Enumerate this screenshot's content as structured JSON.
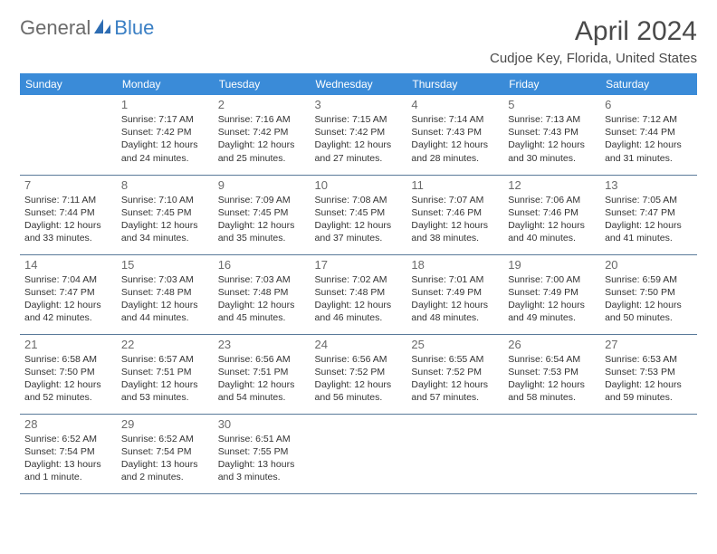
{
  "logo": {
    "text1": "General",
    "text2": "Blue"
  },
  "title": "April 2024",
  "location": "Cudjoe Key, Florida, United States",
  "colors": {
    "header_bg": "#3a8bd8",
    "header_text": "#ffffff",
    "border": "#5a7a9a",
    "logo_gray": "#6b6b6b",
    "logo_blue": "#3a7fc4",
    "text": "#333333",
    "daynum": "#6a6a6a",
    "background": "#ffffff"
  },
  "day_labels": [
    "Sunday",
    "Monday",
    "Tuesday",
    "Wednesday",
    "Thursday",
    "Friday",
    "Saturday"
  ],
  "weeks": [
    [
      null,
      {
        "n": "1",
        "sr": "Sunrise: 7:17 AM",
        "ss": "Sunset: 7:42 PM",
        "d1": "Daylight: 12 hours",
        "d2": "and 24 minutes."
      },
      {
        "n": "2",
        "sr": "Sunrise: 7:16 AM",
        "ss": "Sunset: 7:42 PM",
        "d1": "Daylight: 12 hours",
        "d2": "and 25 minutes."
      },
      {
        "n": "3",
        "sr": "Sunrise: 7:15 AM",
        "ss": "Sunset: 7:42 PM",
        "d1": "Daylight: 12 hours",
        "d2": "and 27 minutes."
      },
      {
        "n": "4",
        "sr": "Sunrise: 7:14 AM",
        "ss": "Sunset: 7:43 PM",
        "d1": "Daylight: 12 hours",
        "d2": "and 28 minutes."
      },
      {
        "n": "5",
        "sr": "Sunrise: 7:13 AM",
        "ss": "Sunset: 7:43 PM",
        "d1": "Daylight: 12 hours",
        "d2": "and 30 minutes."
      },
      {
        "n": "6",
        "sr": "Sunrise: 7:12 AM",
        "ss": "Sunset: 7:44 PM",
        "d1": "Daylight: 12 hours",
        "d2": "and 31 minutes."
      }
    ],
    [
      {
        "n": "7",
        "sr": "Sunrise: 7:11 AM",
        "ss": "Sunset: 7:44 PM",
        "d1": "Daylight: 12 hours",
        "d2": "and 33 minutes."
      },
      {
        "n": "8",
        "sr": "Sunrise: 7:10 AM",
        "ss": "Sunset: 7:45 PM",
        "d1": "Daylight: 12 hours",
        "d2": "and 34 minutes."
      },
      {
        "n": "9",
        "sr": "Sunrise: 7:09 AM",
        "ss": "Sunset: 7:45 PM",
        "d1": "Daylight: 12 hours",
        "d2": "and 35 minutes."
      },
      {
        "n": "10",
        "sr": "Sunrise: 7:08 AM",
        "ss": "Sunset: 7:45 PM",
        "d1": "Daylight: 12 hours",
        "d2": "and 37 minutes."
      },
      {
        "n": "11",
        "sr": "Sunrise: 7:07 AM",
        "ss": "Sunset: 7:46 PM",
        "d1": "Daylight: 12 hours",
        "d2": "and 38 minutes."
      },
      {
        "n": "12",
        "sr": "Sunrise: 7:06 AM",
        "ss": "Sunset: 7:46 PM",
        "d1": "Daylight: 12 hours",
        "d2": "and 40 minutes."
      },
      {
        "n": "13",
        "sr": "Sunrise: 7:05 AM",
        "ss": "Sunset: 7:47 PM",
        "d1": "Daylight: 12 hours",
        "d2": "and 41 minutes."
      }
    ],
    [
      {
        "n": "14",
        "sr": "Sunrise: 7:04 AM",
        "ss": "Sunset: 7:47 PM",
        "d1": "Daylight: 12 hours",
        "d2": "and 42 minutes."
      },
      {
        "n": "15",
        "sr": "Sunrise: 7:03 AM",
        "ss": "Sunset: 7:48 PM",
        "d1": "Daylight: 12 hours",
        "d2": "and 44 minutes."
      },
      {
        "n": "16",
        "sr": "Sunrise: 7:03 AM",
        "ss": "Sunset: 7:48 PM",
        "d1": "Daylight: 12 hours",
        "d2": "and 45 minutes."
      },
      {
        "n": "17",
        "sr": "Sunrise: 7:02 AM",
        "ss": "Sunset: 7:48 PM",
        "d1": "Daylight: 12 hours",
        "d2": "and 46 minutes."
      },
      {
        "n": "18",
        "sr": "Sunrise: 7:01 AM",
        "ss": "Sunset: 7:49 PM",
        "d1": "Daylight: 12 hours",
        "d2": "and 48 minutes."
      },
      {
        "n": "19",
        "sr": "Sunrise: 7:00 AM",
        "ss": "Sunset: 7:49 PM",
        "d1": "Daylight: 12 hours",
        "d2": "and 49 minutes."
      },
      {
        "n": "20",
        "sr": "Sunrise: 6:59 AM",
        "ss": "Sunset: 7:50 PM",
        "d1": "Daylight: 12 hours",
        "d2": "and 50 minutes."
      }
    ],
    [
      {
        "n": "21",
        "sr": "Sunrise: 6:58 AM",
        "ss": "Sunset: 7:50 PM",
        "d1": "Daylight: 12 hours",
        "d2": "and 52 minutes."
      },
      {
        "n": "22",
        "sr": "Sunrise: 6:57 AM",
        "ss": "Sunset: 7:51 PM",
        "d1": "Daylight: 12 hours",
        "d2": "and 53 minutes."
      },
      {
        "n": "23",
        "sr": "Sunrise: 6:56 AM",
        "ss": "Sunset: 7:51 PM",
        "d1": "Daylight: 12 hours",
        "d2": "and 54 minutes."
      },
      {
        "n": "24",
        "sr": "Sunrise: 6:56 AM",
        "ss": "Sunset: 7:52 PM",
        "d1": "Daylight: 12 hours",
        "d2": "and 56 minutes."
      },
      {
        "n": "25",
        "sr": "Sunrise: 6:55 AM",
        "ss": "Sunset: 7:52 PM",
        "d1": "Daylight: 12 hours",
        "d2": "and 57 minutes."
      },
      {
        "n": "26",
        "sr": "Sunrise: 6:54 AM",
        "ss": "Sunset: 7:53 PM",
        "d1": "Daylight: 12 hours",
        "d2": "and 58 minutes."
      },
      {
        "n": "27",
        "sr": "Sunrise: 6:53 AM",
        "ss": "Sunset: 7:53 PM",
        "d1": "Daylight: 12 hours",
        "d2": "and 59 minutes."
      }
    ],
    [
      {
        "n": "28",
        "sr": "Sunrise: 6:52 AM",
        "ss": "Sunset: 7:54 PM",
        "d1": "Daylight: 13 hours",
        "d2": "and 1 minute."
      },
      {
        "n": "29",
        "sr": "Sunrise: 6:52 AM",
        "ss": "Sunset: 7:54 PM",
        "d1": "Daylight: 13 hours",
        "d2": "and 2 minutes."
      },
      {
        "n": "30",
        "sr": "Sunrise: 6:51 AM",
        "ss": "Sunset: 7:55 PM",
        "d1": "Daylight: 13 hours",
        "d2": "and 3 minutes."
      },
      null,
      null,
      null,
      null
    ]
  ]
}
